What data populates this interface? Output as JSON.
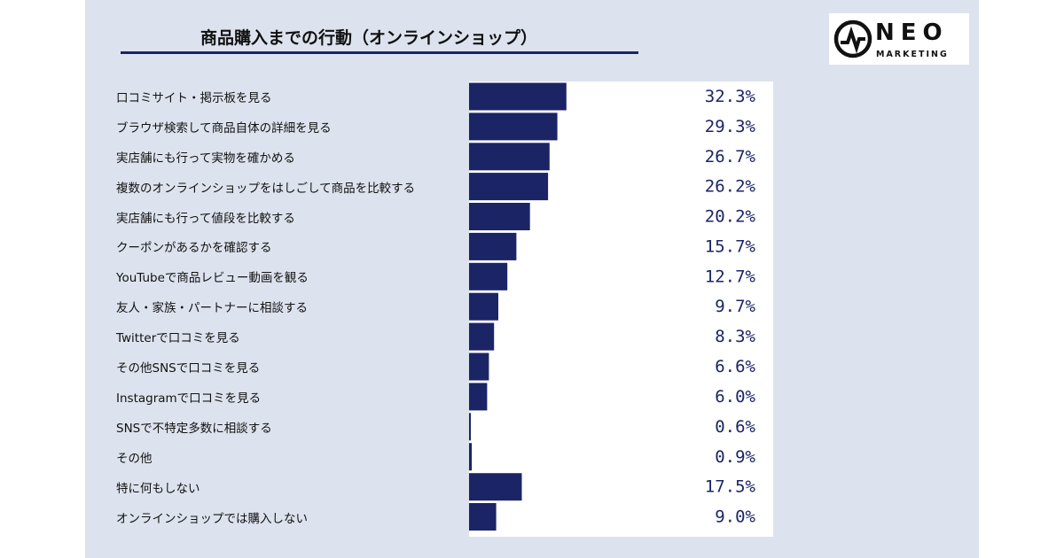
{
  "title": "商品購入までの行動（オンラインショップ）",
  "logo": {
    "word": "NEO",
    "sub": "MARKETING"
  },
  "colors": {
    "bar": "#1b2565",
    "panel": "#dde3ee",
    "plot": "#ffffff"
  },
  "chart_data": {
    "type": "bar",
    "orientation": "horizontal",
    "title": "商品購入までの行動（オンラインショップ）",
    "categories": [
      "口コミサイト・掲示板を見る",
      "ブラウザ検索して商品自体の詳細を見る",
      "実店舗にも行って実物を確かめる",
      "複数のオンラインショップをはしごして商品を比較する",
      "実店舗にも行って値段を比較する",
      "クーポンがあるかを確認する",
      "YouTubeで商品レビュー動画を観る",
      "友人・家族・パートナーに相談する",
      "Twitterで口コミを見る",
      "その他SNSで口コミを見る",
      "Instagramで口コミを見る",
      "SNSで不特定多数に相談する",
      "その他",
      "特に何もしない",
      "オンラインショップでは購入しない"
    ],
    "values": [
      32.3,
      29.3,
      26.7,
      26.2,
      20.2,
      15.7,
      12.7,
      9.7,
      8.3,
      6.6,
      6.0,
      0.6,
      0.9,
      17.5,
      9.0
    ],
    "value_labels": [
      "32.3%",
      "29.3%",
      "26.7%",
      "26.2%",
      "20.2%",
      "15.7%",
      "12.7%",
      "9.7%",
      "8.3%",
      "6.6%",
      "6.0%",
      "0.6%",
      "0.9%",
      "17.5%",
      "9.0%"
    ],
    "unit": "%",
    "xlim": [
      0,
      100
    ],
    "grid": false,
    "legend": "none"
  }
}
